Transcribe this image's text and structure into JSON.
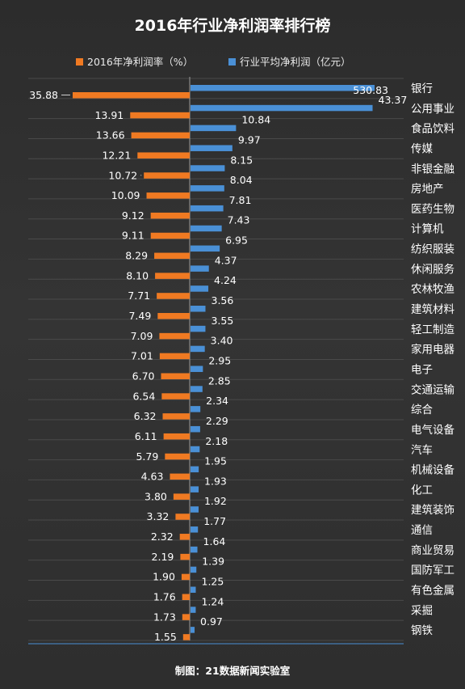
{
  "chart_data": {
    "type": "bar",
    "title": "2016年行业净利润率排行榜",
    "legend_position": "top",
    "categories": [
      "银行",
      "公用事业",
      "食品饮料",
      "传媒",
      "非银金融",
      "房地产",
      "医药生物",
      "计算机",
      "纺织服装",
      "休闲服务",
      "农林牧渔",
      "建筑材料",
      "轻工制造",
      "家用电器",
      "电子",
      "交通运输",
      "综合",
      "电气设备",
      "汽车",
      "机械设备",
      "化工",
      "建筑装饰",
      "通信",
      "商业贸易",
      "国防军工",
      "有色金属",
      "采掘",
      "钢铁"
    ],
    "series": [
      {
        "name": "2016年净利润率（%）",
        "color": "#f07a22",
        "direction": "left",
        "values": [
          35.88,
          13.91,
          13.66,
          12.21,
          10.72,
          10.09,
          9.12,
          9.11,
          8.29,
          8.1,
          7.71,
          7.49,
          7.09,
          7.01,
          6.7,
          6.54,
          6.32,
          6.11,
          5.79,
          4.63,
          3.8,
          3.32,
          2.32,
          2.19,
          1.9,
          1.76,
          1.73,
          1.55
        ],
        "labels": [
          "35.88",
          "13.91",
          "13.66",
          "12.21",
          "10.72",
          "10.09",
          "9.12",
          "9.11",
          "8.29",
          "8.10",
          "7.71",
          "7.49",
          "7.09",
          "7.01",
          "6.70",
          "6.54",
          "6.32",
          "6.11",
          "5.79",
          "4.63",
          "3.80",
          "3.32",
          "2.32",
          "2.19",
          "1.90",
          "1.76",
          "1.73",
          "1.55"
        ]
      },
      {
        "name": "行业平均净利润（亿元）",
        "color": "#4a90d6",
        "direction": "right",
        "values": [
          530.83,
          43.37,
          10.84,
          9.97,
          8.15,
          8.04,
          7.81,
          7.43,
          6.95,
          4.37,
          4.24,
          3.56,
          3.55,
          3.4,
          2.95,
          2.85,
          2.34,
          2.29,
          2.18,
          1.95,
          1.93,
          1.92,
          1.77,
          1.64,
          1.39,
          1.25,
          1.24,
          0.97
        ],
        "labels": [
          "530.83",
          "43.37",
          "10.84",
          "9.97",
          "8.15",
          "8.04",
          "7.81",
          "7.43",
          "6.95",
          "4.37",
          "4.24",
          "3.56",
          "3.55",
          "3.40",
          "2.95",
          "2.85",
          "2.34",
          "2.29",
          "2.18",
          "1.95",
          "1.93",
          "1.92",
          "1.77",
          "1.64",
          "1.39",
          "1.25",
          "1.24",
          "0.97"
        ]
      }
    ],
    "grid": true,
    "axis_broken_for_outliers": true
  },
  "footer": "制图：21数据新闻实验室",
  "colors": {
    "background": "#2f2f2f",
    "grid": "#4a4a4a",
    "axis": "#9a9a9a",
    "baseline": "#4a90d6"
  }
}
